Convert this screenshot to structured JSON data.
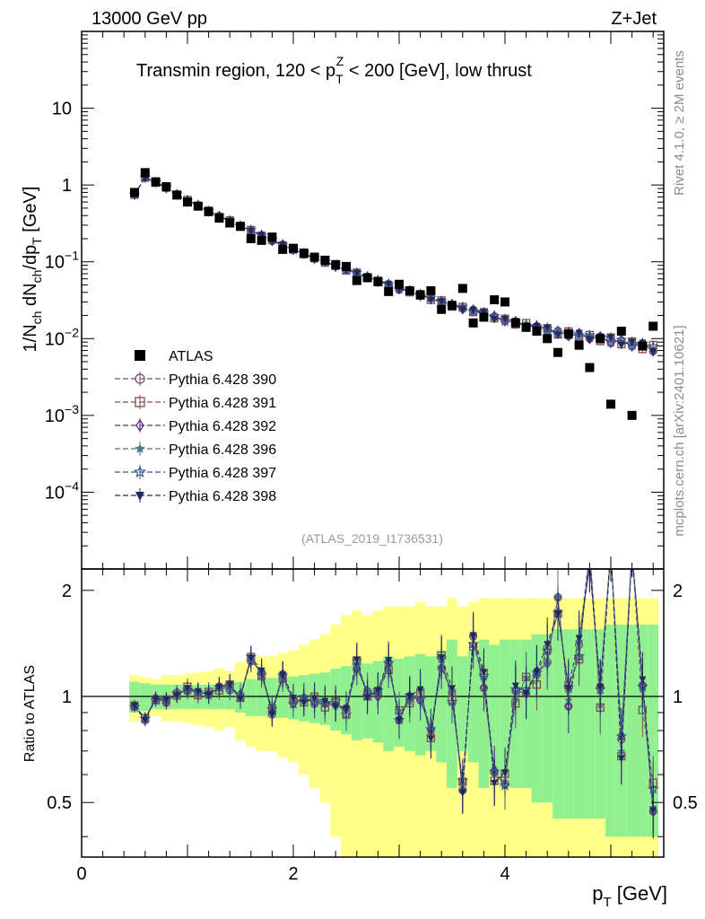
{
  "header": {
    "energy": "13000 GeV pp",
    "process": "Z+Jet"
  },
  "side_labels": {
    "rivet": "Rivet 4.1.0, ≥ 2M events",
    "mcplots": "mcplots.cern.ch [arXiv:2401.10621]"
  },
  "chart_data": [
    {
      "panel": "main",
      "type": "scatter",
      "title": "Transmin region, 120 < p_T^Z < 200 [GeV], low thrust",
      "title_parts": {
        "pre": "Transmin region, 120 < p",
        "sub": "T",
        "sup": "Z",
        "post": " < 200 [GeV], low thrust"
      },
      "ylabel": "1/N_ch dN_ch/dp_T [GeV]",
      "ylabel_parts": {
        "a": "1/N",
        "a_sub": "ch",
        "b": " dN",
        "b_sub": "ch",
        "c": "/dp",
        "c_sub": "T",
        "d": " [GeV]"
      },
      "yscale": "log",
      "ylim": [
        1e-05,
        100
      ],
      "xlim": [
        0,
        5.5
      ],
      "analysis_id": "(ATLAS_2019_I1736531)",
      "y_ticks": [
        {
          "value": 10,
          "base": "10",
          "exp": ""
        },
        {
          "value": 1,
          "base": "1",
          "exp": ""
        },
        {
          "value": 0.1,
          "base": "10",
          "exp": "−1"
        },
        {
          "value": 0.01,
          "base": "10",
          "exp": "−2"
        },
        {
          "value": 0.001,
          "base": "10",
          "exp": "−3"
        },
        {
          "value": 0.0001,
          "base": "10",
          "exp": "−4"
        }
      ],
      "x": [
        0.5,
        0.6,
        0.7,
        0.8,
        0.9,
        1.0,
        1.1,
        1.2,
        1.3,
        1.4,
        1.5,
        1.6,
        1.7,
        1.8,
        1.9,
        2.0,
        2.1,
        2.2,
        2.3,
        2.4,
        2.5,
        2.6,
        2.7,
        2.8,
        2.9,
        3.0,
        3.1,
        3.2,
        3.3,
        3.4,
        3.5,
        3.6,
        3.7,
        3.8,
        3.9,
        4.0,
        4.1,
        4.2,
        4.3,
        4.4,
        4.5,
        4.6,
        4.7,
        4.8,
        4.9,
        5.0,
        5.1,
        5.2,
        5.3,
        5.4
      ],
      "series": [
        {
          "name": "ATLAS",
          "marker": "square-filled",
          "color": "#000000",
          "values": [
            0.8,
            1.45,
            1.1,
            0.95,
            0.74,
            0.6,
            0.53,
            0.45,
            0.37,
            0.32,
            0.29,
            0.2,
            0.19,
            0.21,
            0.145,
            0.15,
            0.13,
            0.115,
            0.105,
            0.092,
            0.087,
            0.057,
            0.062,
            0.055,
            0.041,
            0.051,
            0.042,
            0.037,
            0.042,
            0.024,
            0.027,
            0.045,
            0.016,
            0.019,
            0.032,
            0.03,
            0.016,
            0.014,
            0.0125,
            0.01,
            0.0066,
            0.0115,
            0.0082,
            0.0042,
            0.01,
            0.0014,
            0.0125,
            0.001,
            0.008,
            0.0145
          ]
        },
        {
          "name": "Pythia 6.428 390",
          "marker": "circle-open",
          "color": "#7a4b74",
          "ratio_jitter": [
            0,
            -0.03,
            0.02,
            -0.04,
            0.05,
            -0.06,
            0.03,
            -0.02,
            0.05,
            -0.08,
            0.02,
            -0.05,
            0.04,
            -0.07,
            0.06,
            -0.03,
            0.04,
            -0.09,
            0.05,
            -0.04,
            0.08,
            -0.1,
            0.06,
            -0.05,
            0.09,
            -0.12,
            0.07,
            -0.08,
            0.1,
            -0.15,
            0.09,
            -0.1,
            0.12,
            -0.18,
            0.1,
            -0.12,
            0.15,
            -0.2,
            0.12,
            -0.15,
            0.2,
            -0.25,
            0.18,
            -0.2,
            0.25,
            -0.3,
            0.2,
            -0.25,
            0.3,
            -0.35
          ]
        },
        {
          "name": "Pythia 6.428 391",
          "marker": "square-open",
          "color": "#8b4a4a",
          "ratio_jitter": [
            0.02,
            0.03,
            -0.02,
            0.05,
            -0.03,
            0.06,
            -0.04,
            0.03,
            -0.05,
            0.07,
            -0.03,
            0.06,
            -0.05,
            0.08,
            -0.05,
            0.04,
            -0.06,
            0.1,
            -0.05,
            0.05,
            -0.08,
            0.12,
            -0.06,
            0.07,
            -0.1,
            0.14,
            -0.08,
            0.1,
            -0.12,
            0.18,
            -0.1,
            0.12,
            -0.14,
            0.2,
            -0.12,
            0.14,
            -0.18,
            0.24,
            -0.14,
            0.18,
            -0.22,
            0.3,
            -0.2,
            0.24,
            -0.28,
            0.34,
            -0.24,
            0.3,
            -0.34,
            0.4
          ]
        },
        {
          "name": "Pythia 6.428 392",
          "marker": "diamond-open",
          "color": "#5a2d8c",
          "ratio_jitter": [
            -0.01,
            0.02,
            0.03,
            -0.02,
            0.02,
            -0.03,
            0.05,
            -0.04,
            0.03,
            -0.04,
            0.06,
            -0.03,
            0.05,
            -0.04,
            0.07,
            -0.05,
            0.06,
            -0.06,
            0.08,
            -0.06,
            0.07,
            -0.08,
            0.1,
            -0.08,
            0.09,
            -0.1,
            0.12,
            -0.1,
            0.11,
            -0.13,
            0.15,
            -0.12,
            0.14,
            -0.16,
            0.18,
            -0.14,
            0.17,
            -0.2,
            0.22,
            -0.18,
            0.21,
            -0.25,
            0.27,
            -0.22,
            0.26,
            -0.3,
            0.32,
            -0.28,
            0.31,
            -0.36
          ]
        },
        {
          "name": "Pythia 6.428 396",
          "marker": "star-filled",
          "color": "#4a7a8c",
          "ratio_jitter": [
            0.01,
            -0.02,
            0.04,
            0.02,
            -0.03,
            0.04,
            -0.02,
            0.05,
            0.03,
            -0.05,
            0.06,
            -0.02,
            0.07,
            0.04,
            -0.06,
            0.08,
            -0.03,
            0.09,
            0.05,
            -0.08,
            0.1,
            -0.04,
            0.11,
            0.06,
            -0.1,
            0.13,
            -0.05,
            0.14,
            0.08,
            -0.12,
            0.16,
            -0.06,
            0.17,
            0.1,
            -0.15,
            0.2,
            -0.08,
            0.22,
            0.12,
            -0.18,
            0.24,
            -0.1,
            0.26,
            0.15,
            -0.22,
            0.3,
            -0.12,
            0.32,
            0.18,
            -0.26
          ]
        },
        {
          "name": "Pythia 6.428 397",
          "marker": "star-open",
          "color": "#3d5a8c",
          "ratio_jitter": [
            -0.02,
            0.01,
            -0.03,
            0.04,
            0.03,
            -0.02,
            0.04,
            -0.05,
            0.02,
            0.05,
            -0.04,
            0.06,
            -0.03,
            0.07,
            0.03,
            -0.06,
            0.08,
            -0.04,
            0.07,
            0.06,
            -0.09,
            0.1,
            -0.05,
            0.09,
            0.08,
            -0.11,
            0.12,
            -0.07,
            0.11,
            0.1,
            -0.14,
            0.15,
            -0.08,
            0.14,
            0.12,
            -0.17,
            0.19,
            -0.1,
            0.17,
            0.15,
            -0.2,
            0.23,
            -0.12,
            0.21,
            0.18,
            -0.25,
            0.28,
            -0.15,
            0.26,
            0.22
          ]
        },
        {
          "name": "Pythia 6.428 398",
          "marker": "triangle-down-filled",
          "color": "#1f2a5c",
          "ratio_jitter": [
            0.03,
            -0.01,
            0.02,
            0.06,
            -0.02,
            0.03,
            0.07,
            -0.03,
            0.04,
            0.08,
            -0.04,
            0.05,
            0.1,
            -0.05,
            0.06,
            0.11,
            -0.06,
            0.07,
            0.13,
            -0.07,
            0.08,
            0.15,
            -0.08,
            0.1,
            0.17,
            -0.1,
            0.12,
            0.2,
            -0.12,
            0.14,
            0.23,
            -0.14,
            0.16,
            0.26,
            -0.16,
            0.18,
            0.3,
            -0.18,
            0.21,
            0.34,
            -0.21,
            0.24,
            0.38,
            -0.24,
            0.28,
            0.43,
            -0.28,
            0.32,
            0.48,
            -0.32
          ]
        }
      ],
      "mc_smooth": [
        0.75,
        1.25,
        1.08,
        0.92,
        0.75,
        0.63,
        0.54,
        0.46,
        0.39,
        0.34,
        0.29,
        0.255,
        0.22,
        0.19,
        0.165,
        0.145,
        0.127,
        0.112,
        0.099,
        0.088,
        0.079,
        0.07,
        0.063,
        0.056,
        0.05,
        0.045,
        0.041,
        0.037,
        0.033,
        0.03,
        0.027,
        0.025,
        0.023,
        0.021,
        0.019,
        0.0175,
        0.016,
        0.015,
        0.014,
        0.013,
        0.012,
        0.0115,
        0.011,
        0.0105,
        0.01,
        0.0095,
        0.009,
        0.0085,
        0.008,
        0.0075
      ]
    },
    {
      "panel": "ratio",
      "type": "scatter",
      "ylabel": "Ratio to ATLAS",
      "xlabel": "p_T [GeV]",
      "xlabel_parts": {
        "a": "p",
        "a_sub": "T",
        "b": " [GeV]"
      },
      "xlim": [
        0,
        5.5
      ],
      "ylim": [
        0.35,
        2.3
      ],
      "x_ticks": [
        {
          "value": 0,
          "label": "0"
        },
        {
          "value": 2,
          "label": "2"
        },
        {
          "value": 4,
          "label": "4"
        }
      ],
      "y_ticks": [
        {
          "value": 0.5,
          "label": "0.5"
        },
        {
          "value": 1,
          "label": "1"
        },
        {
          "value": 2,
          "label": "2"
        }
      ],
      "reference_line": 1,
      "band_stat_halfwidth": [
        0.1,
        0.09,
        0.08,
        0.08,
        0.08,
        0.08,
        0.08,
        0.08,
        0.08,
        0.08,
        0.1,
        0.12,
        0.12,
        0.13,
        0.13,
        0.14,
        0.15,
        0.16,
        0.17,
        0.2,
        0.22,
        0.25,
        0.24,
        0.26,
        0.3,
        0.28,
        0.3,
        0.32,
        0.3,
        0.35,
        0.45,
        0.3,
        0.35,
        0.45,
        0.4,
        0.45,
        0.45,
        0.45,
        0.5,
        0.5,
        0.55,
        0.55,
        0.55,
        0.55,
        0.55,
        0.6,
        0.6,
        0.6,
        0.6,
        0.6
      ],
      "band_total_halfwidth": [
        0.15,
        0.13,
        0.12,
        0.15,
        0.15,
        0.16,
        0.17,
        0.18,
        0.2,
        0.18,
        0.25,
        0.28,
        0.3,
        0.3,
        0.33,
        0.35,
        0.4,
        0.45,
        0.5,
        0.6,
        0.7,
        0.75,
        0.7,
        0.75,
        0.8,
        0.8,
        0.8,
        0.85,
        0.8,
        0.8,
        0.9,
        0.8,
        0.85,
        0.9,
        0.9,
        0.9,
        0.9,
        0.9,
        0.9,
        0.9,
        0.9,
        0.9,
        0.9,
        0.9,
        0.9,
        0.9,
        0.9,
        0.9,
        0.9,
        0.9
      ]
    }
  ]
}
